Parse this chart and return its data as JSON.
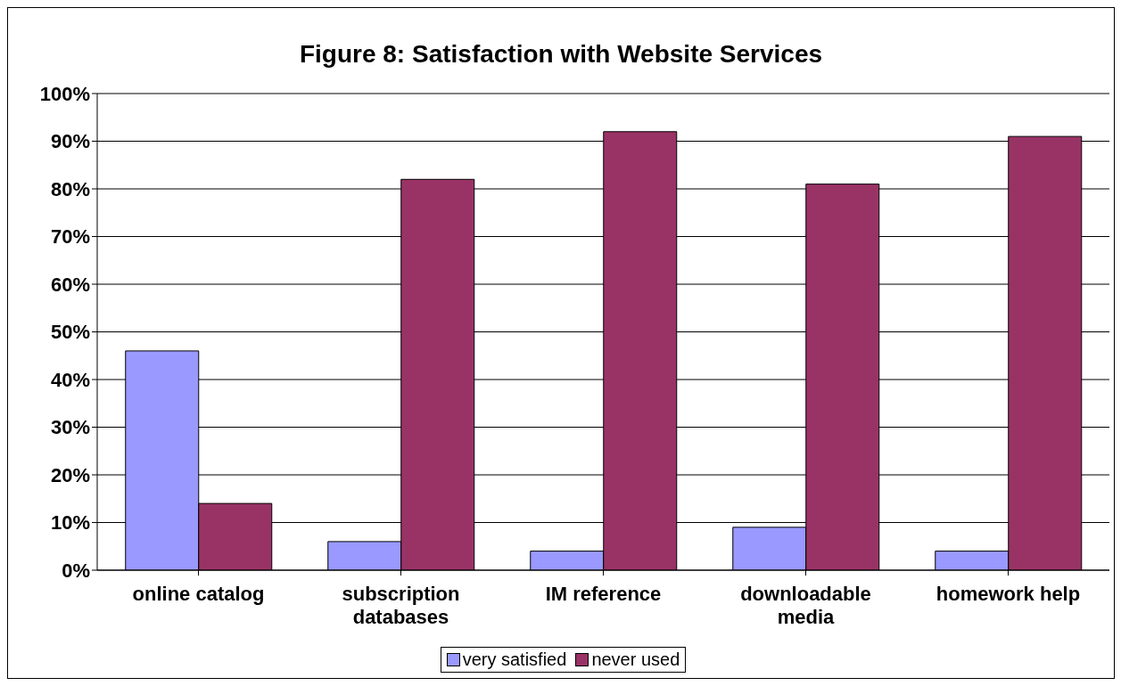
{
  "chart_data": {
    "type": "bar",
    "title": "Figure 8: Satisfaction with Website Services",
    "categories": [
      "online catalog",
      "subscription databases",
      "IM reference",
      "downloadable media",
      "homework help"
    ],
    "series": [
      {
        "name": "very satisfied",
        "color": "#9999ff",
        "values": [
          46,
          6,
          4,
          9,
          4
        ]
      },
      {
        "name": "never used",
        "color": "#993366",
        "values": [
          14,
          82,
          92,
          81,
          91
        ]
      }
    ],
    "ylim": [
      0,
      100
    ],
    "yticks": [
      {
        "value": 0,
        "label": "0%"
      },
      {
        "value": 10,
        "label": "10%"
      },
      {
        "value": 20,
        "label": "20%"
      },
      {
        "value": 30,
        "label": "30%"
      },
      {
        "value": 40,
        "label": "40%"
      },
      {
        "value": 50,
        "label": "50%"
      },
      {
        "value": 60,
        "label": "60%"
      },
      {
        "value": 70,
        "label": "70%"
      },
      {
        "value": 80,
        "label": "80%"
      },
      {
        "value": 90,
        "label": "90%"
      },
      {
        "value": 100,
        "label": "100%"
      }
    ],
    "grid": "y",
    "legend": "bottom"
  }
}
